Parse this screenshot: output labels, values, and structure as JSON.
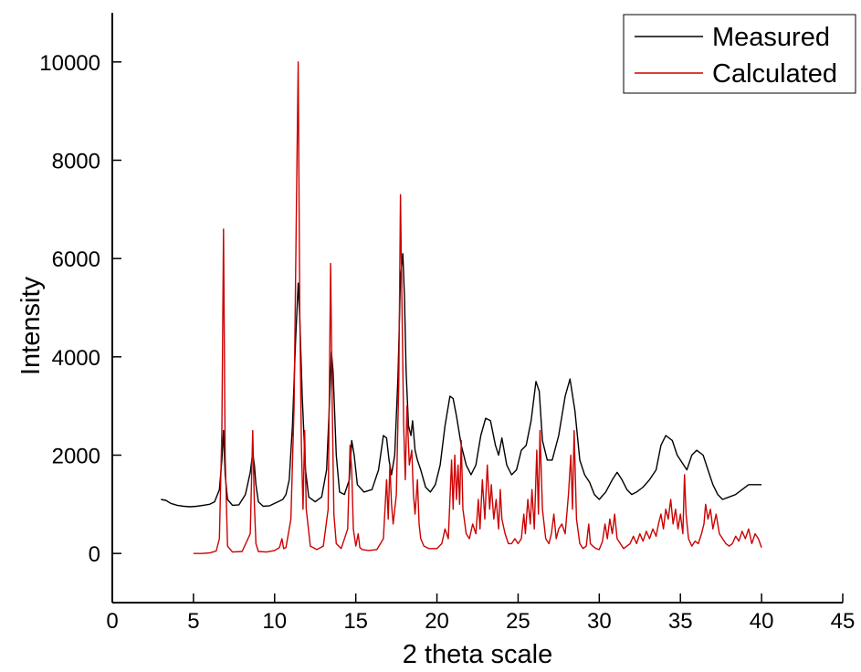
{
  "chart_data": {
    "type": "line",
    "title": "",
    "xlabel": "2 theta scale",
    "ylabel": "Intensity",
    "xlim": [
      0,
      45
    ],
    "ylim": [
      -1000,
      11000
    ],
    "xticks": [
      0,
      5,
      10,
      15,
      20,
      25,
      30,
      35,
      40,
      45
    ],
    "xtick_labels": [
      "0",
      "5",
      "10",
      "15",
      "20",
      "25",
      "30",
      "35",
      "40",
      "45"
    ],
    "yticks": [
      0,
      2000,
      4000,
      6000,
      8000,
      10000
    ],
    "ytick_labels": [
      "0",
      "2000",
      "4000",
      "6000",
      "8000",
      "10000"
    ],
    "grid": false,
    "legend_position": "top-right",
    "series": [
      {
        "name": "Measured",
        "color": "#000000",
        "x": [
          3.0,
          3.3,
          3.6,
          4.0,
          4.4,
          4.8,
          5.2,
          5.6,
          6.0,
          6.3,
          6.6,
          6.75,
          6.85,
          6.95,
          7.1,
          7.4,
          7.8,
          8.2,
          8.5,
          8.65,
          8.75,
          8.85,
          9.0,
          9.3,
          9.7,
          10.2,
          10.5,
          10.7,
          10.9,
          11.1,
          11.3,
          11.45,
          11.55,
          11.7,
          11.9,
          12.1,
          12.5,
          12.9,
          13.2,
          13.4,
          13.5,
          13.6,
          13.8,
          14.0,
          14.3,
          14.6,
          14.75,
          14.9,
          15.1,
          15.5,
          16.0,
          16.4,
          16.7,
          16.9,
          17.05,
          17.2,
          17.4,
          17.6,
          17.75,
          17.9,
          18.0,
          18.1,
          18.25,
          18.4,
          18.5,
          18.65,
          18.8,
          19.0,
          19.3,
          19.6,
          19.9,
          20.2,
          20.5,
          20.8,
          21.0,
          21.2,
          21.5,
          21.8,
          22.1,
          22.4,
          22.7,
          23.0,
          23.3,
          23.6,
          23.8,
          24.0,
          24.3,
          24.6,
          24.9,
          25.2,
          25.5,
          25.8,
          26.1,
          26.3,
          26.5,
          26.8,
          27.1,
          27.5,
          27.9,
          28.2,
          28.5,
          28.8,
          29.1,
          29.4,
          29.7,
          30.0,
          30.4,
          30.8,
          31.1,
          31.4,
          31.7,
          32.0,
          32.3,
          32.7,
          33.1,
          33.5,
          33.8,
          34.1,
          34.5,
          34.8,
          35.1,
          35.4,
          35.7,
          36.0,
          36.4,
          36.7,
          37.0,
          37.3,
          37.6,
          38.0,
          38.4,
          38.8,
          39.2,
          39.6,
          40.0
        ],
        "y": [
          1100,
          1080,
          1020,
          980,
          960,
          950,
          960,
          980,
          1000,
          1050,
          1300,
          1900,
          2500,
          1600,
          1100,
          980,
          990,
          1200,
          1650,
          2050,
          1800,
          1400,
          1050,
          960,
          970,
          1050,
          1100,
          1200,
          1500,
          2600,
          4400,
          5500,
          4800,
          3200,
          1700,
          1150,
          1050,
          1150,
          1700,
          3200,
          4100,
          3700,
          2000,
          1250,
          1200,
          1500,
          2300,
          2000,
          1400,
          1250,
          1300,
          1700,
          2400,
          2350,
          1900,
          1600,
          2000,
          3600,
          5600,
          6100,
          5200,
          3700,
          2600,
          2400,
          2700,
          2100,
          1900,
          1700,
          1350,
          1250,
          1400,
          1800,
          2600,
          3200,
          3150,
          2800,
          2200,
          1800,
          1600,
          1800,
          2400,
          2750,
          2700,
          2200,
          2000,
          2350,
          1800,
          1600,
          1700,
          2100,
          2200,
          2700,
          3500,
          3300,
          2300,
          1900,
          1900,
          2400,
          3200,
          3550,
          2900,
          1900,
          1600,
          1450,
          1200,
          1100,
          1250,
          1500,
          1650,
          1500,
          1300,
          1200,
          1250,
          1350,
          1500,
          1700,
          2200,
          2400,
          2300,
          2000,
          1850,
          1700,
          2000,
          2100,
          2000,
          1700,
          1400,
          1200,
          1100,
          1150,
          1200,
          1300,
          1400,
          1400,
          1400
        ]
      },
      {
        "name": "Calculated",
        "color": "#cc0000",
        "x": [
          5.0,
          5.5,
          6.0,
          6.4,
          6.6,
          6.75,
          6.85,
          6.95,
          7.1,
          7.4,
          8.0,
          8.5,
          8.65,
          8.75,
          8.85,
          9.0,
          9.5,
          10.0,
          10.3,
          10.45,
          10.55,
          10.7,
          11.0,
          11.2,
          11.35,
          11.45,
          11.55,
          11.65,
          11.75,
          11.85,
          11.95,
          12.2,
          12.6,
          13.0,
          13.3,
          13.45,
          13.55,
          13.65,
          13.8,
          14.1,
          14.5,
          14.65,
          14.75,
          14.85,
          15.0,
          15.15,
          15.25,
          15.4,
          15.8,
          16.3,
          16.7,
          16.9,
          17.0,
          17.1,
          17.2,
          17.3,
          17.5,
          17.65,
          17.75,
          17.85,
          17.95,
          18.05,
          18.15,
          18.3,
          18.45,
          18.55,
          18.65,
          18.8,
          18.9,
          19.0,
          19.2,
          19.5,
          20.0,
          20.3,
          20.5,
          20.7,
          20.9,
          21.0,
          21.1,
          21.2,
          21.3,
          21.4,
          21.5,
          21.6,
          21.8,
          22.0,
          22.2,
          22.4,
          22.55,
          22.65,
          22.8,
          22.95,
          23.1,
          23.25,
          23.35,
          23.5,
          23.65,
          23.8,
          23.9,
          24.0,
          24.2,
          24.4,
          24.6,
          24.8,
          25.0,
          25.2,
          25.35,
          25.45,
          25.6,
          25.75,
          25.85,
          26.0,
          26.15,
          26.25,
          26.35,
          26.5,
          26.7,
          26.9,
          27.05,
          27.2,
          27.35,
          27.5,
          27.7,
          27.9,
          28.1,
          28.25,
          28.35,
          28.45,
          28.6,
          28.8,
          29.0,
          29.2,
          29.35,
          29.45,
          29.6,
          29.8,
          30.0,
          30.2,
          30.35,
          30.5,
          30.65,
          30.8,
          30.95,
          31.1,
          31.3,
          31.5,
          31.7,
          31.9,
          32.1,
          32.3,
          32.5,
          32.7,
          32.9,
          33.1,
          33.3,
          33.5,
          33.65,
          33.8,
          33.95,
          34.1,
          34.25,
          34.4,
          34.55,
          34.7,
          34.85,
          35.0,
          35.15,
          35.25,
          35.35,
          35.5,
          35.7,
          35.9,
          36.1,
          36.3,
          36.45,
          36.55,
          36.7,
          36.85,
          37.0,
          37.2,
          37.4,
          37.6,
          37.8,
          38.0,
          38.2,
          38.4,
          38.6,
          38.8,
          39.0,
          39.2,
          39.4,
          39.6,
          39.8,
          40.0
        ],
        "y": [
          0,
          0,
          10,
          50,
          300,
          2500,
          6600,
          2000,
          150,
          30,
          40,
          400,
          2500,
          1000,
          200,
          40,
          30,
          60,
          120,
          300,
          100,
          120,
          700,
          3000,
          7300,
          10000,
          5000,
          2200,
          900,
          2500,
          900,
          150,
          80,
          150,
          900,
          5900,
          3000,
          800,
          200,
          100,
          500,
          2200,
          1700,
          500,
          150,
          400,
          120,
          80,
          60,
          80,
          300,
          1500,
          700,
          1800,
          1000,
          600,
          1200,
          3500,
          7300,
          5000,
          2600,
          1500,
          3000,
          1800,
          2100,
          1200,
          800,
          1500,
          600,
          300,
          150,
          100,
          100,
          200,
          500,
          300,
          1900,
          900,
          2000,
          1100,
          1800,
          1000,
          2300,
          900,
          400,
          300,
          600,
          400,
          1100,
          500,
          1500,
          700,
          1800,
          900,
          1400,
          700,
          1100,
          500,
          1300,
          700,
          400,
          200,
          200,
          300,
          200,
          300,
          800,
          400,
          1100,
          600,
          1300,
          500,
          2100,
          800,
          2500,
          900,
          300,
          200,
          400,
          800,
          300,
          500,
          600,
          400,
          1200,
          2000,
          900,
          2500,
          700,
          200,
          100,
          150,
          600,
          200,
          150,
          100,
          80,
          250,
          600,
          300,
          700,
          400,
          800,
          300,
          200,
          100,
          150,
          200,
          350,
          200,
          400,
          250,
          450,
          300,
          500,
          350,
          600,
          800,
          500,
          900,
          700,
          1100,
          600,
          900,
          500,
          800,
          400,
          1600,
          800,
          300,
          150,
          250,
          200,
          400,
          600,
          1000,
          700,
          900,
          500,
          800,
          400,
          300,
          200,
          150,
          200,
          350,
          250,
          450,
          300,
          500,
          200,
          400,
          300,
          120
        ]
      }
    ]
  }
}
